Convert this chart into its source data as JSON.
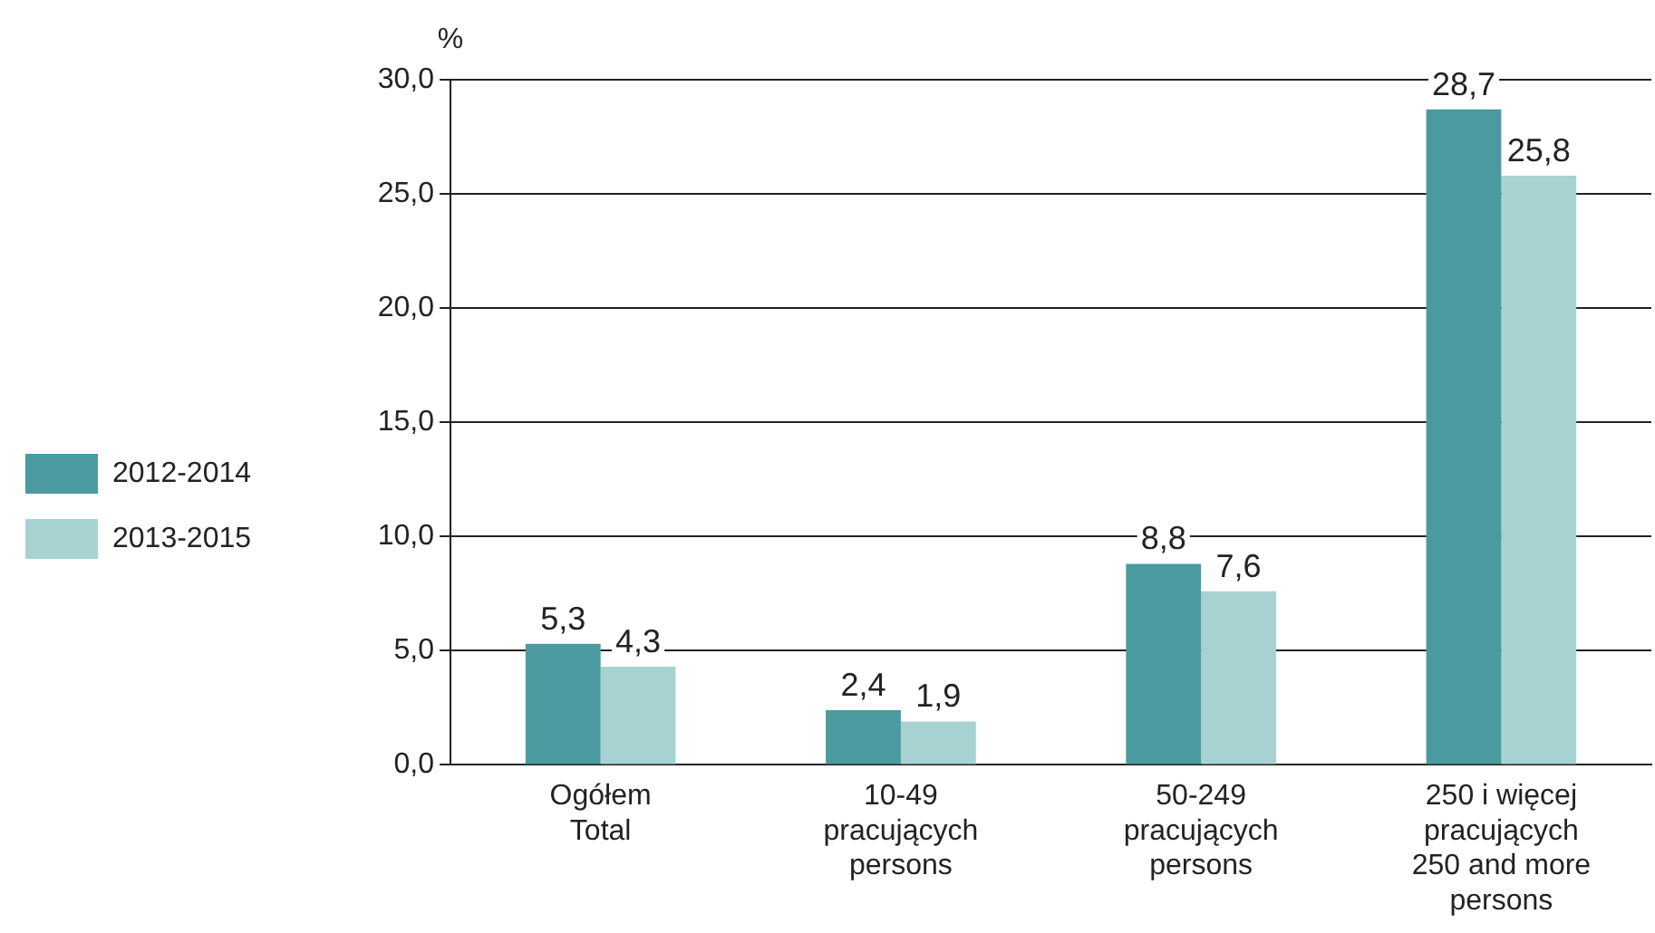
{
  "chart_data": {
    "type": "bar",
    "ylabel": "%",
    "categories": [
      "Ogółem\nTotal",
      "10-49\npracujących\npersons",
      "50-249\npracujących\npersons",
      "250 i więcej\npracujących\n250 and more\npersons"
    ],
    "series": [
      {
        "name": "2012-2014",
        "color": "#4a9a9f",
        "values": [
          5.3,
          2.4,
          8.8,
          28.7
        ],
        "value_labels": [
          "5,3",
          "2,4",
          "8,8",
          "28,7"
        ]
      },
      {
        "name": "2013-2015",
        "color": "#a6d3d2",
        "values": [
          4.3,
          1.9,
          7.6,
          25.8
        ],
        "value_labels": [
          "4,3",
          "1,9",
          "7,6",
          "25,8"
        ]
      }
    ],
    "ylim": [
      0,
      30
    ],
    "yticks": [
      {
        "value": 0,
        "label": "0,0"
      },
      {
        "value": 5,
        "label": "5,0"
      },
      {
        "value": 10,
        "label": "10,0"
      },
      {
        "value": 15,
        "label": "15,0"
      },
      {
        "value": 20,
        "label": "20,0"
      },
      {
        "value": 25,
        "label": "25,0"
      },
      {
        "value": 30,
        "label": "30,0"
      }
    ],
    "grid": "y",
    "legend": "left"
  }
}
